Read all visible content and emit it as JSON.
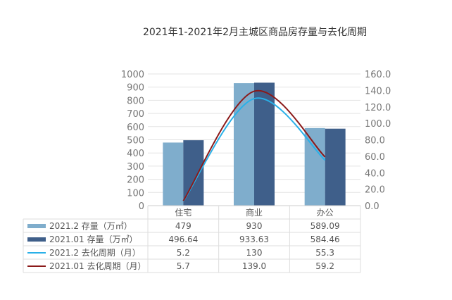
{
  "chart_data": {
    "type": "bar+line",
    "title": "2021年1-2021年2月主城区商品房存量与去化周期",
    "categories": [
      "住宅",
      "商业",
      "办公"
    ],
    "left_axis": {
      "ylim": [
        0,
        1000
      ],
      "ticks": [
        "0",
        "100",
        "200",
        "300",
        "400",
        "500",
        "600",
        "700",
        "800",
        "900",
        "1000"
      ]
    },
    "right_axis": {
      "ylim": [
        0,
        160
      ],
      "ticks": [
        "0.0",
        "20.0",
        "40.0",
        "60.0",
        "80.0",
        "100.0",
        "120.0",
        "140.0",
        "160.0"
      ]
    },
    "grid": true,
    "series": [
      {
        "name": "2021.2 存量（万㎡）",
        "kind": "bar",
        "axis": "left",
        "color": "#7fadcc",
        "values": [
          479,
          930,
          589.09
        ],
        "labels": [
          "479",
          "930",
          "589.09"
        ]
      },
      {
        "name": "2021.01 存量（万㎡）",
        "kind": "bar",
        "axis": "left",
        "color": "#3f5f8a",
        "values": [
          496.64,
          933.63,
          584.46
        ],
        "labels": [
          "496.64",
          "933.63",
          "584.46"
        ]
      },
      {
        "name": "2021.2 去化周期（月）",
        "kind": "line",
        "axis": "right",
        "color": "#29b0e8",
        "values": [
          5.2,
          130,
          55.3
        ],
        "labels": [
          "5.2",
          "130",
          "55.3"
        ]
      },
      {
        "name": "2021.01 去化周期（月）",
        "kind": "line",
        "axis": "right",
        "color": "#8b1a1a",
        "values": [
          5.7,
          139.0,
          59.2
        ],
        "labels": [
          "5.7",
          "139.0",
          "59.2"
        ]
      }
    ],
    "legend": "data-table"
  }
}
